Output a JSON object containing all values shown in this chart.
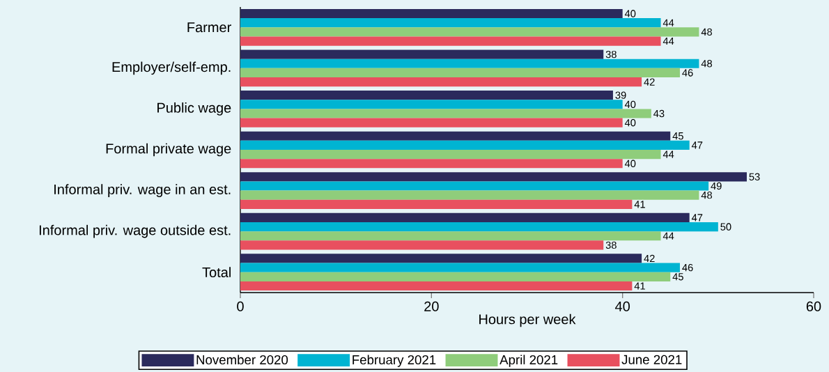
{
  "chart_data": {
    "type": "bar",
    "orientation": "horizontal",
    "xlabel": "Hours per week",
    "categories": [
      "Farmer",
      "Employer/self-emp.",
      "Public wage",
      "Formal private wage",
      "Informal priv. wage in an est.",
      "Informal priv. wage outside est.",
      "Total"
    ],
    "series": [
      {
        "name": "November 2020",
        "color": "#2b2a5c",
        "values": [
          40,
          38,
          39,
          45,
          53,
          47,
          42
        ]
      },
      {
        "name": "February 2021",
        "color": "#00b4d2",
        "values": [
          44,
          48,
          40,
          47,
          49,
          50,
          46
        ]
      },
      {
        "name": "April 2021",
        "color": "#8fcd7b",
        "values": [
          48,
          46,
          43,
          44,
          48,
          44,
          45
        ]
      },
      {
        "name": "June 2021",
        "color": "#e8505f",
        "values": [
          44,
          42,
          40,
          40,
          41,
          38,
          41
        ]
      }
    ],
    "xlim": [
      0,
      60
    ],
    "xticks": [
      0,
      20,
      40,
      60
    ],
    "data_labels": true,
    "legend": "bottom"
  }
}
